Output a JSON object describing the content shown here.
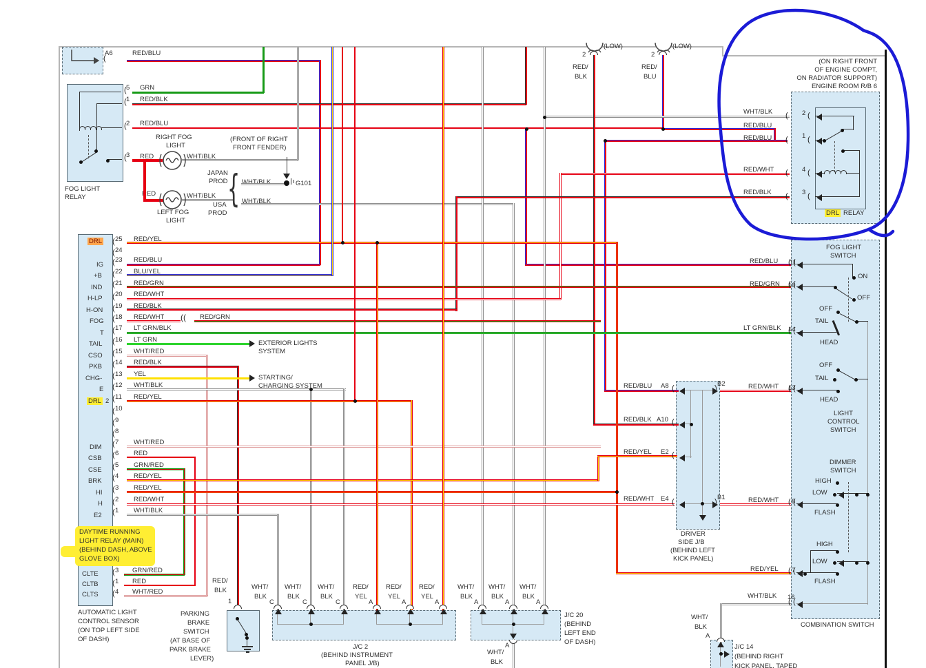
{
  "diagram": "automotive wiring diagram - daytime running lights / fog lights circuit",
  "colors": {
    "wire_red": "#e60012",
    "wire_green": "#169a16",
    "wire_blue": "#2a2adf",
    "wire_yellow": "#ffe000",
    "wire_light_green": "#2fd42f",
    "wire_gray": "#9a9a9a",
    "component_fill": "#d6e9f5",
    "highlight_yellow": "#ffee33",
    "highlight_orange": "#ffa64d",
    "annotation_blue": "#1b1bd6"
  },
  "labels": {
    "top_left": [
      "A6",
      "RED/BLU",
      "5",
      "GRN",
      "1",
      "RED/BLK",
      "2",
      "RED/BLU",
      "RIGHT FOG",
      "LIGHT",
      "(FRONT OF RIGHT",
      "FRONT FENDER)",
      "3",
      "RED",
      "WHT/BLK",
      "JAPAN",
      "PROD",
      "WHT/BLK",
      "G101",
      "FOG LIGHT",
      "RELAY",
      "RED",
      "WHT/BLK",
      "USA",
      "PROD",
      "WHT/BLK",
      "LEFT FOG",
      "LIGHT"
    ],
    "headlights": [
      "(LOW)",
      "(LOW)",
      "2",
      "2",
      "RED/",
      "BLK",
      "RED/",
      "BLU"
    ],
    "connector_left": [
      {
        "t": "DRL",
        "hl": "o"
      },
      "IG",
      "+B",
      "IND",
      "H-LP",
      "H-ON",
      "FOG",
      "T",
      "TAIL",
      "CSO",
      "PKB",
      "CHG-",
      "E",
      {
        "t": "DRL",
        "hl": "y"
      },
      "2",
      "DIM",
      "CSB",
      "CSE",
      "BRK",
      "HI",
      "H",
      "E2"
    ],
    "connector_pins": [
      "25",
      "RED/YEL",
      "24",
      "23",
      "RED/BLU",
      "22",
      "BLU/YEL",
      "21",
      "RED/GRN",
      "20",
      "RED/WHT",
      "19",
      "RED/BLK",
      "18",
      "RED/WHT",
      "RED/GRN",
      "17",
      "LT GRN/BLK",
      "16",
      "LT GRN",
      "15",
      "WHT/RED",
      "14",
      "RED/BLK",
      "13",
      "YEL",
      "12",
      "WHT/BLK",
      "11",
      "RED/YEL",
      "10",
      "9",
      "8",
      "7",
      "WHT/RED",
      "6",
      "RED",
      "5",
      "GRN/RED",
      "4",
      "RED/YEL",
      "3",
      "RED/YEL",
      "2",
      "RED/WHT",
      "1",
      "WHT/BLK"
    ],
    "system_arrows": [
      "EXTERIOR LIGHTS",
      "SYSTEM",
      "STARTING/",
      "CHARGING SYSTEM"
    ],
    "note": [
      {
        "t": "DAYTIME RUNNING",
        "hl": "y"
      },
      {
        "t": "LIGHT RELAY (MAIN)",
        "hl": "y"
      },
      {
        "t": "(BEHIND DASH, ABOVE",
        "hl": "y"
      },
      {
        "t": "GLOVE BOX)",
        "hl": "y"
      }
    ],
    "sensor": [
      "CLTE",
      "3",
      "GRN/RED",
      "CLTB",
      "1",
      "RED",
      "CLTS",
      "4",
      "WHT/RED",
      "AUTOMATIC LIGHT",
      "CONTROL SENSOR",
      "(ON TOP LEFT SIDE",
      "OF DASH)"
    ],
    "bottom": [
      "RED/",
      "BLK",
      "1",
      "PARKING",
      "BRAKE",
      "SWITCH",
      "(AT BASE OF",
      "PARK BRAKE",
      "LEVER)",
      "WHT/",
      "BLK",
      "WHT/",
      "BLK",
      "WHT/",
      "BLK",
      "RED/",
      "YEL",
      "RED/",
      "YEL",
      "RED/",
      "YEL",
      "C",
      "C",
      "C",
      "A",
      "A",
      "A",
      "J/C 2",
      "(BEHIND INSTRUMENT",
      "PANEL J/B)",
      "WHT/",
      "BLK",
      "WHT/",
      "BLK",
      "WHT/",
      "BLK",
      "A",
      "A",
      "A",
      "J/C 20",
      "(BEHIND",
      "LEFT END",
      "OF DASH)",
      "A",
      "WHT/",
      "BLK",
      "WHT/",
      "BLK",
      "A",
      "J/C 14",
      "(BEHIND RIGHT",
      "KICK PANEL, TAPED"
    ],
    "drl_relay": [
      "(ON RIGHT FRONT",
      "OF ENGINE COMPT,",
      "ON RADIATOR SUPPORT)",
      "ENGINE ROOM R/B 6",
      "WHT/BLK",
      "2",
      "RED/BLU",
      "RED/BLU",
      "1",
      "RED/WHT",
      "4",
      "RED/BLK",
      "3",
      {
        "t": "DRL",
        "hl": "y"
      },
      "RELAY"
    ],
    "combination_switch": [
      "FOG LIGHT",
      "SWITCH",
      "RED/BLU",
      "11",
      "ON",
      "RED/GRN",
      "10",
      "OFF",
      "OFF",
      "TAIL",
      "HEAD",
      "LT GRN/BLK",
      "14",
      "OFF",
      "TAIL",
      "HEAD",
      "B2",
      "RED/WHT",
      "13",
      "LIGHT",
      "CONTROL",
      "SWITCH",
      "DIMMER",
      "SWITCH",
      "HIGH",
      "LOW",
      "FLASH",
      "B1",
      "RED/WHT",
      "8",
      "HIGH",
      "LOW",
      "FLASH",
      "RED/YEL",
      "7",
      "WHT/BLK",
      "16",
      "COMBINATION SWITCH"
    ],
    "driver_jb": [
      "RED/BLU",
      "A8",
      "RED/BLK",
      "A10",
      "RED/YEL",
      "E2",
      "RED/WHT",
      "E4",
      "DRIVER",
      "SIDE J/B",
      "(BEHIND LEFT",
      "KICK PANEL)"
    ],
    "misc": [
      "(("
    ]
  }
}
